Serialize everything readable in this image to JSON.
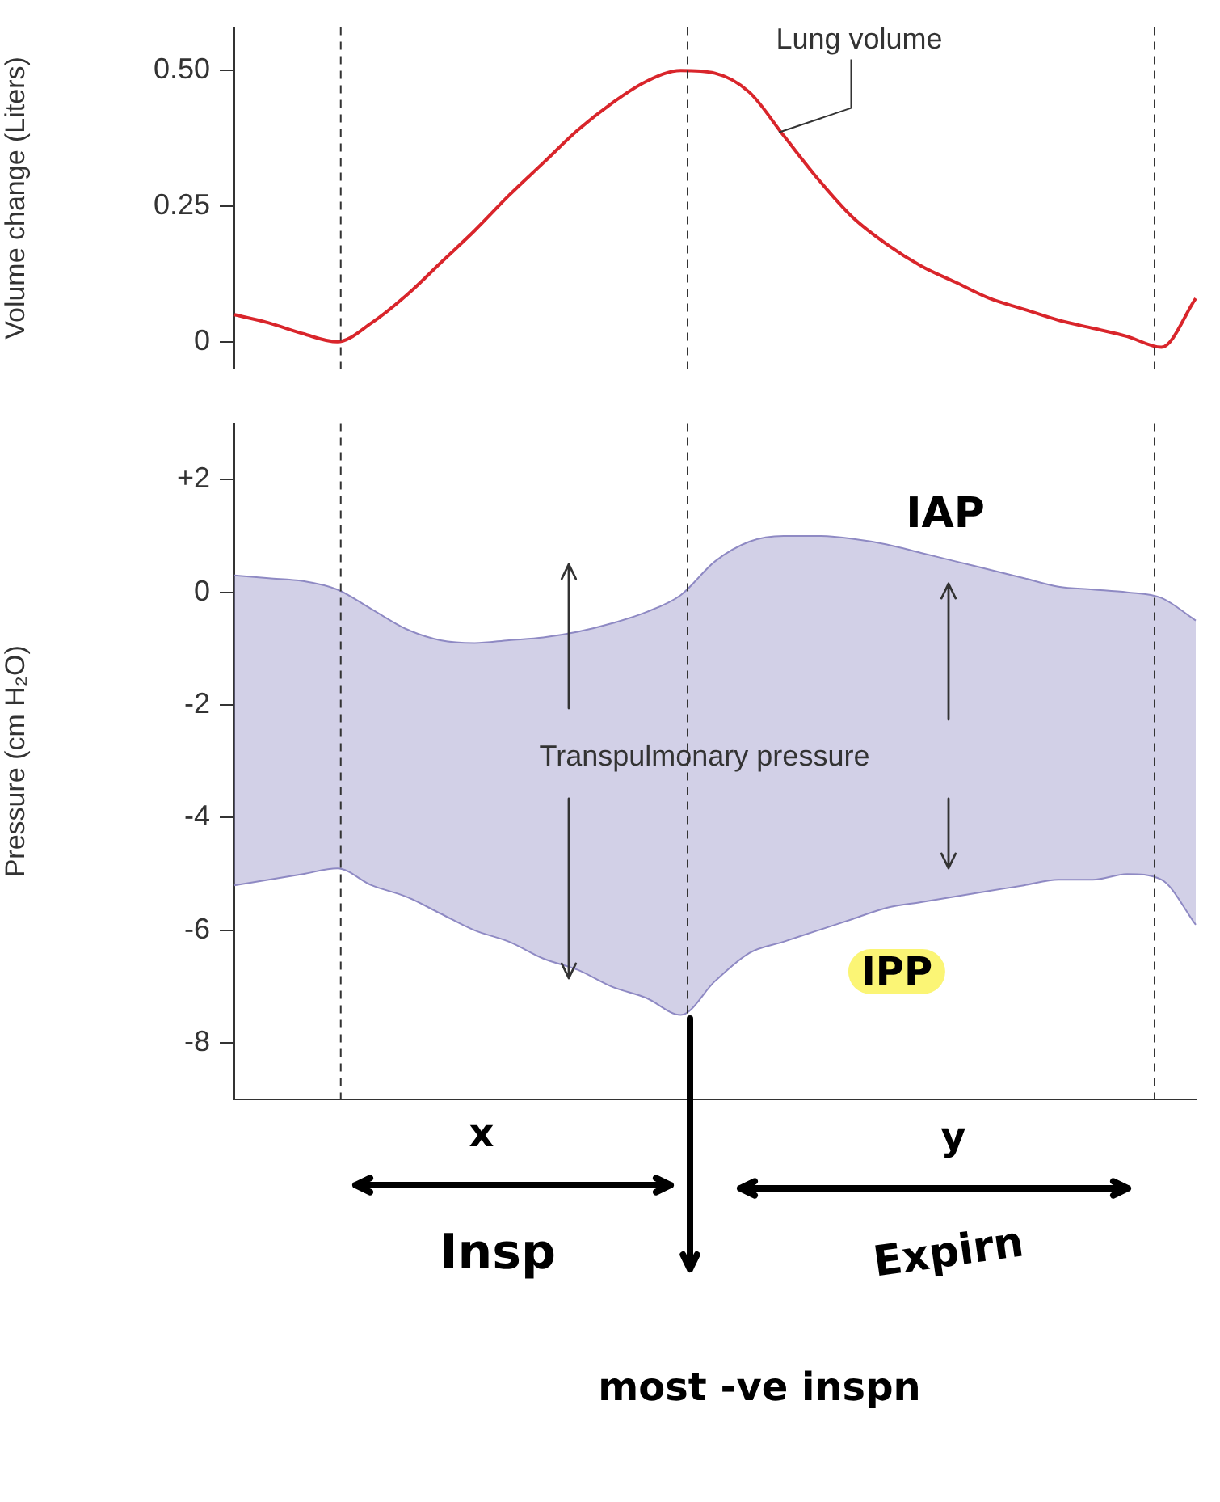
{
  "chart_data": [
    {
      "type": "line",
      "ylabel": "Volume change (Liters)",
      "categories": [
        null,
        null,
        null,
        null,
        null,
        null,
        null,
        null,
        null,
        null,
        null,
        null,
        null,
        null,
        null,
        null,
        null,
        null,
        null,
        null,
        null,
        null,
        null,
        null,
        null,
        null,
        null,
        null,
        null
      ],
      "series": [
        {
          "name": "Lung volume",
          "color": "#d9252b",
          "values": [
            0.05,
            0.035,
            0.015,
            0.0,
            0.035,
            0.085,
            0.145,
            0.205,
            0.27,
            0.33,
            0.39,
            0.44,
            0.48,
            0.5,
            0.495,
            0.46,
            0.38,
            0.3,
            0.23,
            0.18,
            0.14,
            0.11,
            0.08,
            0.06,
            0.04,
            0.025,
            0.01,
            -0.01,
            0.08
          ]
        }
      ],
      "ylim": [
        -0.05,
        0.58
      ],
      "yticks": [
        0,
        0.25,
        {
          "value": 0.5,
          "label": "0.50"
        }
      ],
      "tick_labels": "y",
      "grid": false,
      "legend": false
    },
    {
      "type": "line",
      "ylabel": "Pressure (cm H₂O)",
      "categories": [
        null,
        null,
        null,
        null,
        null,
        null,
        null,
        null,
        null,
        null,
        null,
        null,
        null,
        null,
        null,
        null,
        null,
        null,
        null,
        null,
        null,
        null,
        null,
        null,
        null,
        null,
        null,
        null,
        null
      ],
      "series": [
        {
          "color": "#8f8ac4",
          "values": [
            0.3,
            0.25,
            0.2,
            0.05,
            -0.3,
            -0.65,
            -0.85,
            -0.9,
            -0.85,
            -0.8,
            -0.7,
            -0.55,
            -0.35,
            -0.05,
            0.55,
            0.9,
            1.0,
            1.0,
            0.95,
            0.85,
            0.7,
            0.55,
            0.4,
            0.25,
            0.1,
            0.05,
            0.0,
            -0.1,
            -0.5
          ],
          "upper": [
            0.3,
            0.25,
            0.2,
            0.05,
            -0.3,
            -0.65,
            -0.85,
            -0.9,
            -0.85,
            -0.8,
            -0.7,
            -0.55,
            -0.35,
            -0.05,
            0.55,
            0.9,
            1.0,
            1.0,
            0.95,
            0.85,
            0.7,
            0.55,
            0.4,
            0.25,
            0.1,
            0.05,
            0.0,
            -0.1,
            -0.5
          ],
          "lower": [
            -5.2,
            -5.1,
            -5.0,
            -4.9,
            -5.2,
            -5.4,
            -5.7,
            -6.0,
            -6.2,
            -6.5,
            -6.7,
            -7.0,
            -7.2,
            -7.5,
            -6.9,
            -6.4,
            -6.2,
            -6.0,
            -5.8,
            -5.6,
            -5.5,
            -5.4,
            -5.3,
            -5.2,
            -5.1,
            -5.1,
            -5.0,
            -5.1,
            -5.9
          ]
        },
        {
          "color": "#8f8ac4",
          "values": [
            -5.2,
            -5.1,
            -5.0,
            -4.9,
            -5.2,
            -5.4,
            -5.7,
            -6.0,
            -6.2,
            -6.5,
            -6.7,
            -7.0,
            -7.2,
            -7.5,
            -6.9,
            -6.4,
            -6.2,
            -6.0,
            -5.8,
            -5.6,
            -5.5,
            -5.4,
            -5.3,
            -5.2,
            -5.1,
            -5.1,
            -5.0,
            -5.1,
            -5.9
          ]
        }
      ],
      "ylim": [
        -9,
        3
      ],
      "yticks": [
        {
          "value": 2,
          "label": "+2"
        },
        0,
        -2,
        -4,
        -6,
        -8
      ],
      "tick_labels": "y",
      "grid": false,
      "legend": false,
      "annotations": [
        "Transpulmonary pressure",
        "IAP",
        "IPP",
        "x",
        "y",
        "Insp",
        "Expirn",
        "most -ve inspn"
      ]
    }
  ]
}
